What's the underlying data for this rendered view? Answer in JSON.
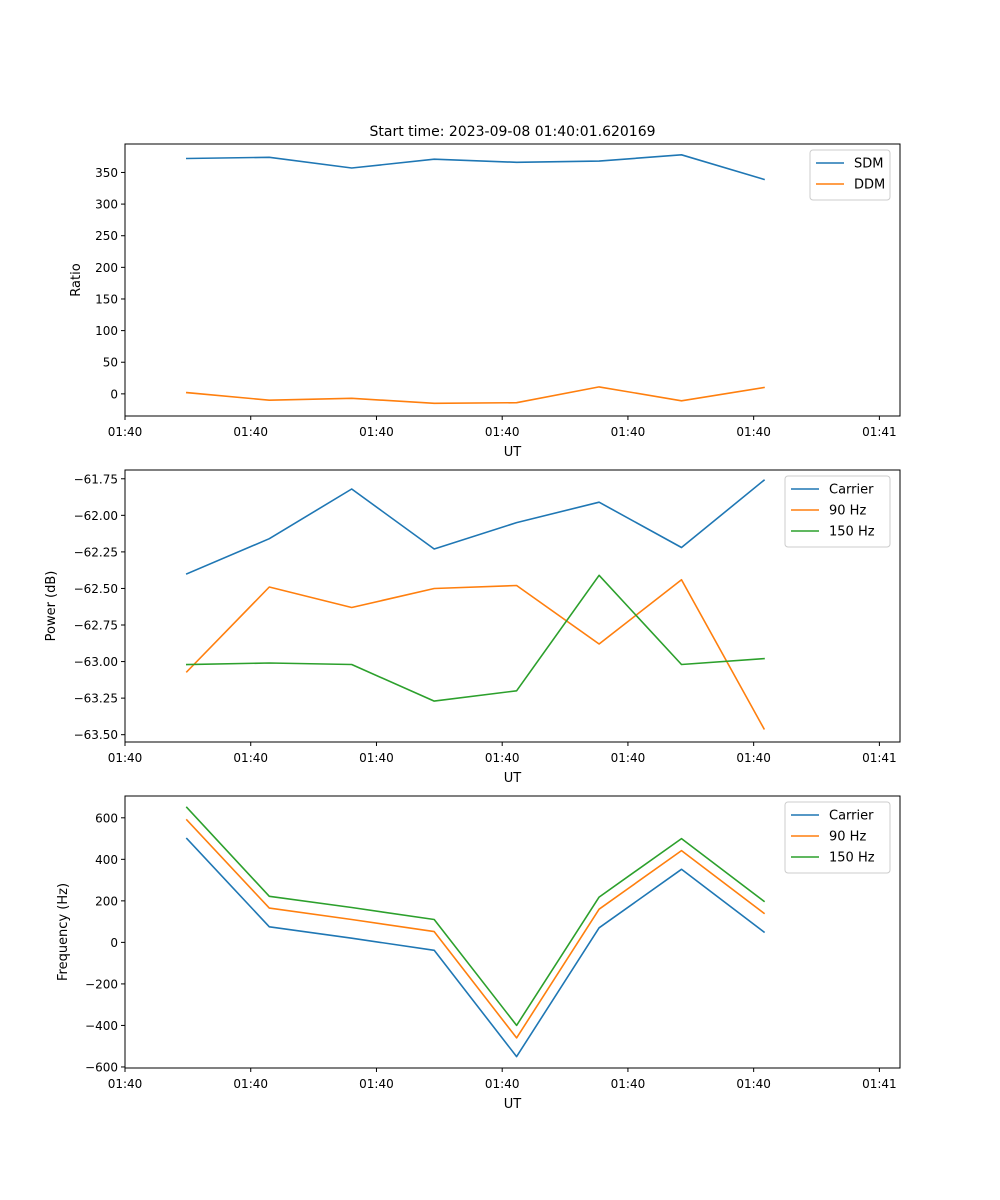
{
  "chart_data": [
    {
      "type": "line",
      "title": "Start time: 2023-09-08 01:40:01.620169",
      "xlabel": "UT",
      "ylabel": "Ratio",
      "xlim": [
        0,
        9.4
      ],
      "ylim": [
        -35,
        395
      ],
      "x": [
        0.75,
        1.75,
        2.75,
        3.75,
        4.75,
        5.75,
        6.75,
        7.75
      ],
      "x_ticks": [
        {
          "pos": 0,
          "label": "01:40"
        },
        {
          "pos": 1.525,
          "label": "01:40"
        },
        {
          "pos": 3.05,
          "label": "01:40"
        },
        {
          "pos": 4.575,
          "label": "01:40"
        },
        {
          "pos": 6.1,
          "label": "01:40"
        },
        {
          "pos": 7.625,
          "label": "01:40"
        },
        {
          "pos": 9.15,
          "label": "01:41"
        }
      ],
      "y_ticks": [
        {
          "v": 0,
          "label": "0"
        },
        {
          "v": 50,
          "label": "50"
        },
        {
          "v": 100,
          "label": "100"
        },
        {
          "v": 150,
          "label": "150"
        },
        {
          "v": 200,
          "label": "200"
        },
        {
          "v": 250,
          "label": "250"
        },
        {
          "v": 300,
          "label": "300"
        },
        {
          "v": 350,
          "label": "350"
        }
      ],
      "legend_position": "top-right",
      "series": [
        {
          "name": "SDM",
          "color": "#1f77b4",
          "values": [
            372,
            374,
            357,
            371,
            366,
            368,
            378,
            339
          ]
        },
        {
          "name": "DDM",
          "color": "#ff7f0e",
          "values": [
            2,
            -10,
            -7,
            -15,
            -14,
            11,
            -11,
            10
          ]
        }
      ]
    },
    {
      "type": "line",
      "title": "",
      "xlabel": "UT",
      "ylabel": "Power (dB)",
      "xlim": [
        0,
        9.4
      ],
      "ylim": [
        -63.55,
        -61.69
      ],
      "x": [
        0.75,
        1.75,
        2.75,
        3.75,
        4.75,
        5.75,
        6.75,
        7.75
      ],
      "x_ticks": [
        {
          "pos": 0,
          "label": "01:40"
        },
        {
          "pos": 1.525,
          "label": "01:40"
        },
        {
          "pos": 3.05,
          "label": "01:40"
        },
        {
          "pos": 4.575,
          "label": "01:40"
        },
        {
          "pos": 6.1,
          "label": "01:40"
        },
        {
          "pos": 7.625,
          "label": "01:40"
        },
        {
          "pos": 9.15,
          "label": "01:41"
        }
      ],
      "y_ticks": [
        {
          "v": -63.5,
          "label": "−63.50"
        },
        {
          "v": -63.25,
          "label": "−63.25"
        },
        {
          "v": -63.0,
          "label": "−63.00"
        },
        {
          "v": -62.75,
          "label": "−62.75"
        },
        {
          "v": -62.5,
          "label": "−62.50"
        },
        {
          "v": -62.25,
          "label": "−62.25"
        },
        {
          "v": -62.0,
          "label": "−62.00"
        },
        {
          "v": -61.75,
          "label": "−61.75"
        }
      ],
      "legend_position": "top-right",
      "series": [
        {
          "name": "Carrier",
          "color": "#1f77b4",
          "values": [
            -62.4,
            -62.16,
            -61.82,
            -62.23,
            -62.05,
            -61.91,
            -62.22,
            -61.76
          ]
        },
        {
          "name": "90 Hz",
          "color": "#ff7f0e",
          "values": [
            -63.07,
            -62.49,
            -62.63,
            -62.5,
            -62.48,
            -62.88,
            -62.44,
            -63.46
          ]
        },
        {
          "name": "150 Hz",
          "color": "#2ca02c",
          "values": [
            -63.02,
            -63.01,
            -63.02,
            -63.27,
            -63.2,
            -62.41,
            -63.02,
            -62.98
          ]
        }
      ]
    },
    {
      "type": "line",
      "title": "",
      "xlabel": "UT",
      "ylabel": "Frequency (Hz)",
      "xlim": [
        0,
        9.4
      ],
      "ylim": [
        -605,
        705
      ],
      "x": [
        0.75,
        1.75,
        2.75,
        3.75,
        4.75,
        5.75,
        6.75,
        7.75
      ],
      "x_ticks": [
        {
          "pos": 0,
          "label": "01:40"
        },
        {
          "pos": 1.525,
          "label": "01:40"
        },
        {
          "pos": 3.05,
          "label": "01:40"
        },
        {
          "pos": 4.575,
          "label": "01:40"
        },
        {
          "pos": 6.1,
          "label": "01:40"
        },
        {
          "pos": 7.625,
          "label": "01:40"
        },
        {
          "pos": 9.15,
          "label": "01:41"
        }
      ],
      "y_ticks": [
        {
          "v": -600,
          "label": "−600"
        },
        {
          "v": -400,
          "label": "−400"
        },
        {
          "v": -200,
          "label": "−200"
        },
        {
          "v": 0,
          "label": "0"
        },
        {
          "v": 200,
          "label": "200"
        },
        {
          "v": 400,
          "label": "400"
        },
        {
          "v": 600,
          "label": "600"
        }
      ],
      "legend_position": "top-right",
      "series": [
        {
          "name": "Carrier",
          "color": "#1f77b4",
          "values": [
            500,
            75,
            20,
            -38,
            -550,
            70,
            352,
            50
          ]
        },
        {
          "name": "90 Hz",
          "color": "#ff7f0e",
          "values": [
            590,
            165,
            110,
            52,
            -460,
            160,
            442,
            140
          ]
        },
        {
          "name": "150 Hz",
          "color": "#2ca02c",
          "values": [
            650,
            222,
            168,
            110,
            -400,
            218,
            500,
            198
          ]
        }
      ]
    }
  ]
}
